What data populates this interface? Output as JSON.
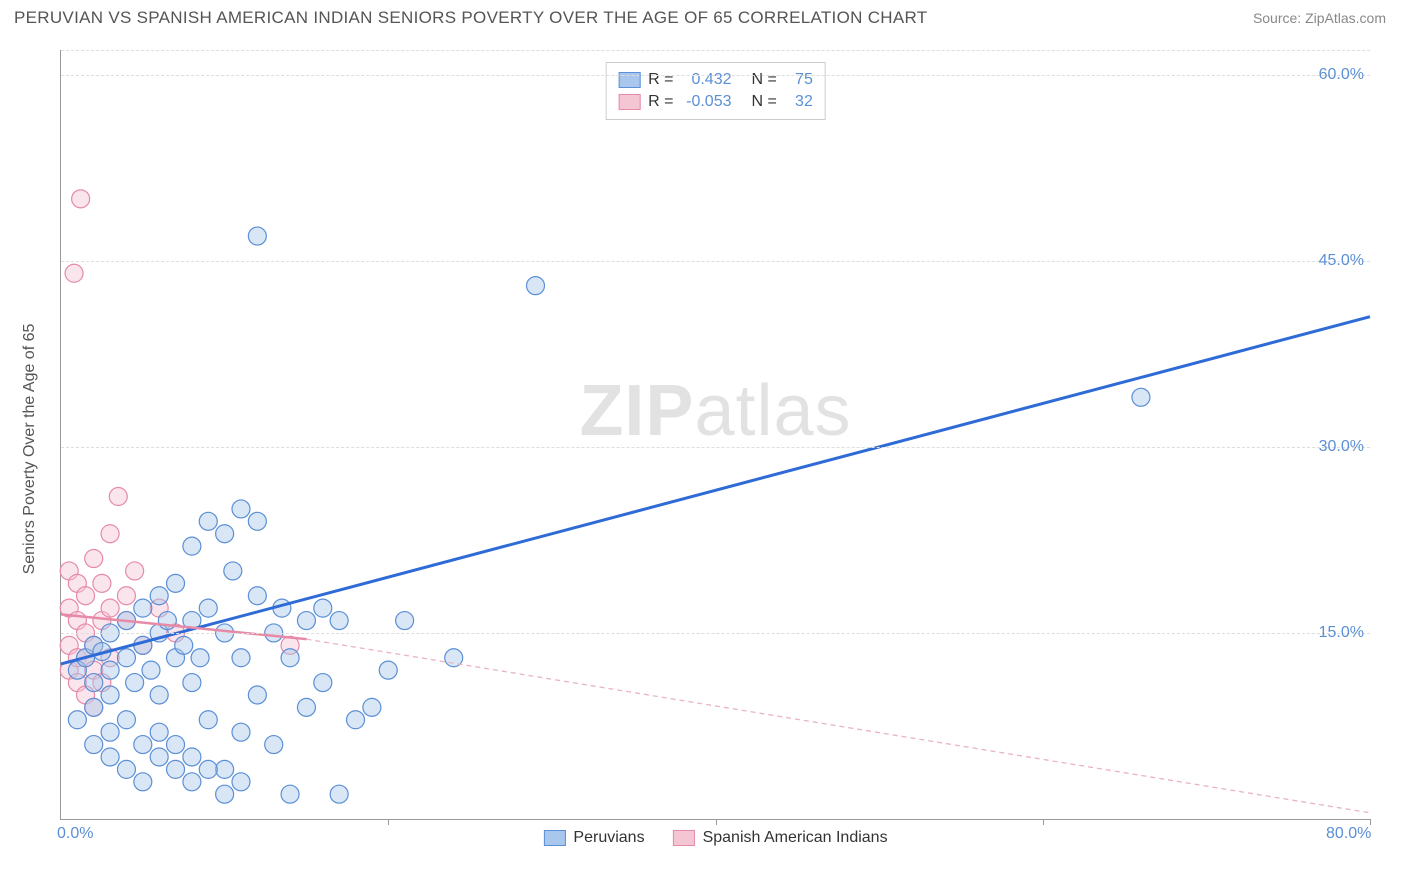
{
  "title": "PERUVIAN VS SPANISH AMERICAN INDIAN SENIORS POVERTY OVER THE AGE OF 65 CORRELATION CHART",
  "source": "Source: ZipAtlas.com",
  "watermark_bold": "ZIP",
  "watermark_rest": "atlas",
  "y_axis_label": "Seniors Poverty Over the Age of 65",
  "chart": {
    "type": "scatter",
    "background_color": "#ffffff",
    "grid_color": "#dddddd",
    "axis_color": "#999999",
    "xlim": [
      0,
      80
    ],
    "ylim": [
      0,
      62
    ],
    "x_ticks": [
      0,
      20,
      40,
      60,
      80
    ],
    "x_tick_labels": [
      "0.0%",
      "",
      "",
      "",
      "80.0%"
    ],
    "y_ticks": [
      15,
      30,
      45,
      60
    ],
    "y_tick_labels": [
      "15.0%",
      "30.0%",
      "45.0%",
      "60.0%"
    ],
    "marker_radius": 9,
    "marker_opacity": 0.45,
    "marker_stroke_width": 1.2,
    "series": [
      {
        "name": "Peruvians",
        "color_fill": "#a9c7ec",
        "color_stroke": "#5b8fd6",
        "r_value": "0.432",
        "n_value": "75",
        "trend": {
          "x1": 0,
          "y1": 12.5,
          "x2": 80,
          "y2": 40.5,
          "color": "#2e6bd6",
          "width": 3,
          "dash": ""
        },
        "points": [
          [
            1,
            12
          ],
          [
            1.5,
            13
          ],
          [
            2,
            11
          ],
          [
            2,
            14
          ],
          [
            2.5,
            13.5
          ],
          [
            3,
            12
          ],
          [
            3,
            10
          ],
          [
            3,
            15
          ],
          [
            4,
            13
          ],
          [
            4,
            16
          ],
          [
            4.5,
            11
          ],
          [
            5,
            14
          ],
          [
            5,
            17
          ],
          [
            5.5,
            12
          ],
          [
            6,
            18
          ],
          [
            6,
            15
          ],
          [
            6,
            10
          ],
          [
            6.5,
            16
          ],
          [
            7,
            13
          ],
          [
            7,
            19
          ],
          [
            7.5,
            14
          ],
          [
            8,
            22
          ],
          [
            8,
            16
          ],
          [
            8,
            11
          ],
          [
            8.5,
            13
          ],
          [
            9,
            17
          ],
          [
            9,
            24
          ],
          [
            9,
            8
          ],
          [
            10,
            15
          ],
          [
            10,
            23
          ],
          [
            10,
            4
          ],
          [
            10.5,
            20
          ],
          [
            11,
            25
          ],
          [
            11,
            13
          ],
          [
            11,
            7
          ],
          [
            12,
            18
          ],
          [
            12,
            24
          ],
          [
            12,
            10
          ],
          [
            13,
            15
          ],
          [
            13,
            6
          ],
          [
            13.5,
            17
          ],
          [
            14,
            13
          ],
          [
            14,
            2
          ],
          [
            15,
            16
          ],
          [
            15,
            9
          ],
          [
            16,
            17
          ],
          [
            16,
            11
          ],
          [
            17,
            16
          ],
          [
            18,
            8
          ],
          [
            19,
            9
          ],
          [
            20,
            12
          ],
          [
            21,
            16
          ],
          [
            29,
            43
          ],
          [
            66,
            34
          ],
          [
            12,
            47
          ],
          [
            5,
            6
          ],
          [
            6,
            5
          ],
          [
            7,
            4
          ],
          [
            8,
            3
          ],
          [
            4,
            8
          ],
          [
            3,
            7
          ],
          [
            2,
            9
          ],
          [
            1,
            8
          ],
          [
            2,
            6
          ],
          [
            3,
            5
          ],
          [
            4,
            4
          ],
          [
            5,
            3
          ],
          [
            6,
            7
          ],
          [
            7,
            6
          ],
          [
            8,
            5
          ],
          [
            9,
            4
          ],
          [
            24,
            13
          ],
          [
            10,
            2
          ],
          [
            11,
            3
          ],
          [
            17,
            2
          ]
        ]
      },
      {
        "name": "Spanish American Indians",
        "color_fill": "#f4c6d4",
        "color_stroke": "#e68aa8",
        "r_value": "-0.053",
        "n_value": "32",
        "trend": {
          "x1": 0,
          "y1": 16.5,
          "x2": 15,
          "y2": 14.5,
          "color": "#e68aa8",
          "width": 2.5,
          "dash": ""
        },
        "trend_ext": {
          "x1": 15,
          "y1": 14.5,
          "x2": 80,
          "y2": 0.5,
          "color": "#e9b3c5",
          "width": 1.3,
          "dash": "5,4"
        },
        "points": [
          [
            0.5,
            12
          ],
          [
            0.5,
            14
          ],
          [
            0.5,
            17
          ],
          [
            0.5,
            20
          ],
          [
            0.8,
            44
          ],
          [
            1,
            11
          ],
          [
            1,
            13
          ],
          [
            1,
            16
          ],
          [
            1,
            19
          ],
          [
            1.2,
            50
          ],
          [
            1.5,
            10
          ],
          [
            1.5,
            13
          ],
          [
            1.5,
            15
          ],
          [
            1.5,
            18
          ],
          [
            2,
            12
          ],
          [
            2,
            14
          ],
          [
            2,
            21
          ],
          [
            2,
            9
          ],
          [
            2.5,
            11
          ],
          [
            2.5,
            16
          ],
          [
            2.5,
            19
          ],
          [
            3,
            13
          ],
          [
            3,
            17
          ],
          [
            3,
            23
          ],
          [
            3.5,
            26
          ],
          [
            4,
            16
          ],
          [
            4,
            18
          ],
          [
            4.5,
            20
          ],
          [
            5,
            14
          ],
          [
            6,
            17
          ],
          [
            7,
            15
          ],
          [
            14,
            14
          ]
        ]
      }
    ],
    "legend_top": {
      "r_label": "R =",
      "n_label": "N ="
    },
    "legend_bottom": [
      {
        "label": "Peruvians",
        "fill": "#a9c7ec",
        "stroke": "#5b8fd6"
      },
      {
        "label": "Spanish American Indians",
        "fill": "#f4c6d4",
        "stroke": "#e68aa8"
      }
    ]
  }
}
